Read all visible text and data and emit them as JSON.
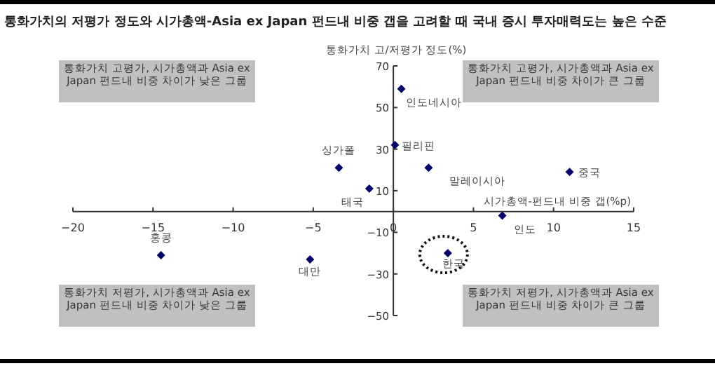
{
  "chart_data": {
    "type": "scatter",
    "title": "통화가치의 저평가 정도와 시가총액-Asia ex Japan 펀드내 비중 갭을 고려할 때 국내 증시 투자매력도는 높은 수준",
    "xlabel": "시가총액-펀드내 비중 갭(%p)",
    "ylabel": "통화가치 고/저평가 정도(%)",
    "x": [
      0.5,
      0.1,
      -3.4,
      -1.5,
      2.2,
      11,
      6.8,
      3.4,
      -14.5,
      -5.2
    ],
    "series": [
      {
        "color": "#000066",
        "values": [
          59,
          32,
          21,
          11,
          21,
          19,
          -2,
          -20,
          -21,
          -23
        ]
      }
    ],
    "marker": "diamond",
    "xlim": [
      -20,
      15
    ],
    "xticks": [
      {
        "value": -20,
        "label": "−20"
      },
      {
        "value": -15,
        "label": "−15"
      },
      {
        "value": -10,
        "label": "−10"
      },
      {
        "value": -5,
        "label": "−5"
      },
      0,
      5,
      10,
      15
    ],
    "ylim": [
      -50,
      70
    ],
    "yticks": [
      70,
      50,
      30,
      10,
      {
        "value": -10,
        "label": "−10"
      },
      {
        "value": -30,
        "label": "−30"
      },
      {
        "value": -50,
        "label": "−50"
      }
    ],
    "annotations": [
      {
        "text": "인도네시아",
        "x": 0.5,
        "y": 59
      },
      {
        "text": "필리핀",
        "x": 0.1,
        "y": 32
      },
      {
        "text": "싱가폴",
        "x": -3.4,
        "y": 21
      },
      {
        "text": "태국",
        "x": -1.5,
        "y": 11
      },
      {
        "text": "말레이시아",
        "x": 2.2,
        "y": 21
      },
      {
        "text": "중국",
        "x": 11,
        "y": 19
      },
      {
        "text": "인도",
        "x": 6.8,
        "y": -2
      },
      {
        "text": "한국",
        "x": 3.4,
        "y": -20
      },
      {
        "text": "홍콩",
        "x": -14.5,
        "y": -21
      },
      {
        "text": "대만",
        "x": -5.2,
        "y": -23
      },
      "통화가치 고평가, 시가총액과 Asia ex Japan 펀드내 비중 차이가 낮은 그룹",
      "통화가치 고평가, 시가총액과 Asia ex Japan 펀드내 비중 차이가 큰 그룹",
      "통화가치 저평가, 시가총액과 Asia ex Japan 펀드내 비중 차이가 낮은 그룹",
      "통화가치 저평가, 시가총액과 Asia ex Japan 펀드내 비중 차이가 큰 그룹"
    ]
  }
}
